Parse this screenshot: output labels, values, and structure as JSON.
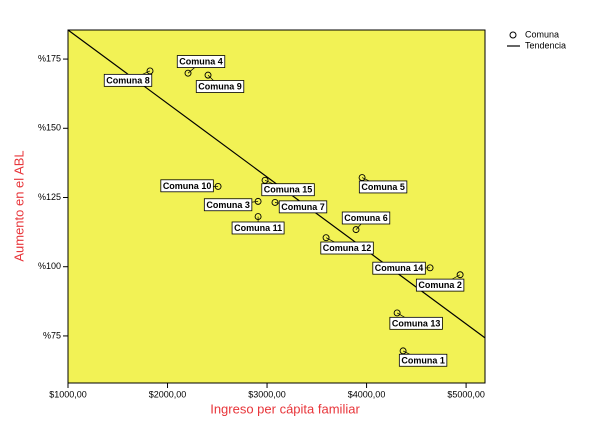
{
  "chart_data": {
    "type": "scatter",
    "xlabel": "Ingreso per cápita familiar",
    "ylabel": "Aumento en el ABL",
    "background": "#f2f255",
    "xlim": [
      1000,
      5190
    ],
    "ylim": [
      58,
      185.5
    ],
    "xticks": [
      {
        "value": 1000,
        "label": "$1000,00"
      },
      {
        "value": 2000,
        "label": "$2000,00"
      },
      {
        "value": 3000,
        "label": "$3000,00"
      },
      {
        "value": 4000,
        "label": "$4000,00"
      },
      {
        "value": 5000,
        "label": "$5000,00"
      }
    ],
    "yticks": [
      {
        "value": 75,
        "label": "%75"
      },
      {
        "value": 100,
        "label": "%100"
      },
      {
        "value": 125,
        "label": "%125"
      },
      {
        "value": 150,
        "label": "%150"
      },
      {
        "value": 175,
        "label": "%175"
      }
    ],
    "series": [
      {
        "name": "Comuna",
        "color": "#000000",
        "x": [
          4367,
          4940,
          2910,
          2206,
          3955,
          3894,
          3080,
          1824,
          2407,
          2508,
          2910,
          3593,
          4307,
          4638,
          2980
        ],
        "values": [
          69.6,
          97.1,
          123.6,
          169.9,
          132.2,
          113.4,
          123.2,
          170.7,
          169.2,
          129.0,
          118.1,
          110.5,
          83.3,
          99.6,
          131.2
        ],
        "labels": [
          "Comuna 1",
          "Comuna 2",
          "Comuna 3",
          "Comuna 4",
          "Comuna 5",
          "Comuna 6",
          "Comuna 7",
          "Comuna 8",
          "Comuna 9",
          "Comuna 10",
          "Comuna 11",
          "Comuna 12",
          "Comuna 13",
          "Comuna 14",
          "Comuna 15"
        ]
      }
    ],
    "trend": {
      "name": "Tendencia",
      "color": "#000000",
      "x": [
        1000,
        5190
      ],
      "values": [
        185.5,
        74.3
      ]
    }
  }
}
